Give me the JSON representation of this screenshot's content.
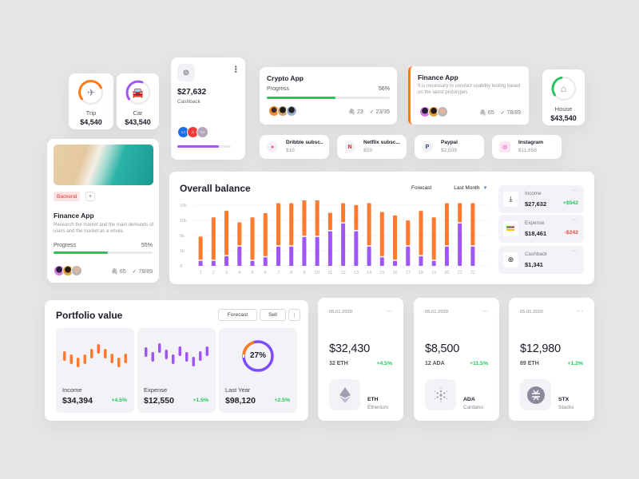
{
  "colors": {
    "background": "#e5e5e5",
    "orange": "#ff7a2f",
    "purple": "#a055f5",
    "green": "#22c55e",
    "red": "#ef4444",
    "blue": "#3b82f6"
  },
  "ring_cards": [
    {
      "label": "Trip",
      "value": "$4,540",
      "icon": "plane-icon",
      "color": "#ff7a1a",
      "percent": 65
    },
    {
      "label": "Car",
      "value": "$43,540",
      "icon": "car-icon",
      "color": "#a055f5",
      "percent": 60
    },
    {
      "label": "House",
      "value": "$43,540",
      "icon": "house-icon",
      "color": "#22c55e",
      "percent": 30
    }
  ],
  "cashback_card": {
    "icon": "coins-icon",
    "amount": "$27,632",
    "label": "Cashback",
    "progress": 78
  },
  "crypto_app_card": {
    "title": "Crypto App",
    "progress_label": "Progress",
    "progress_value": "56%",
    "progress": 56,
    "attachments": "23",
    "tasks": "23/35"
  },
  "finance_app_card_top": {
    "title": "Finance App",
    "description": "It is necessary to conduct usability testing based on the latest prototypes",
    "attachments": "65",
    "tasks": "78/89"
  },
  "subscriptions": [
    {
      "name": "Dribble subsc..",
      "amount": "$15",
      "icon": "dribbble-icon"
    },
    {
      "name": "Netflix subsc...",
      "amount": "$59",
      "icon": "netflix-icon"
    },
    {
      "name": "Paypal",
      "amount": "$2,509",
      "icon": "paypal-icon"
    },
    {
      "name": "Instagram",
      "amount": "$11,658",
      "icon": "instagram-icon"
    }
  ],
  "finance_app_card_left": {
    "tag": "Backend",
    "add_label": "+",
    "title": "Finance App",
    "description": "Research the market and the main demands of users and the market as a whole.",
    "progress_label": "Progress",
    "progress_value": "55%",
    "progress": 55,
    "attachments": "65",
    "tasks": "78/89"
  },
  "overall_balance": {
    "title": "Overall balance",
    "tab_forecast": "Forecast",
    "tab_period": "Last Month",
    "stats": [
      {
        "label": "Income",
        "amount": "$27,632",
        "delta": "+$542",
        "icon": "download-icon",
        "dots": "···"
      },
      {
        "label": "Expense",
        "amount": "$18,461",
        "delta": "-$242",
        "icon": "wallet-icon",
        "dots": "···"
      },
      {
        "label": "Cashback",
        "amount": "$1,341",
        "delta": "",
        "icon": "cashback-icon",
        "dots": "···"
      }
    ]
  },
  "chart_data": {
    "type": "bar",
    "title": "Overall balance",
    "stacked": true,
    "categories": [
      "1",
      "2",
      "3",
      "4",
      "5",
      "6",
      "7",
      "8",
      "9",
      "10",
      "11",
      "12",
      "13",
      "14",
      "15",
      "16",
      "17",
      "18",
      "19",
      "20",
      "21",
      "22"
    ],
    "y_tick_labels": [
      "0",
      "1k",
      "5k",
      "10k",
      "15k"
    ],
    "series": [
      {
        "name": "Purple (lower)",
        "color": "#a055f5",
        "values": [
          1.3,
          1.3,
          2.5,
          5.0,
          1.3,
          2.2,
          5.0,
          5.0,
          7.5,
          7.5,
          9.0,
          11.0,
          9.0,
          5.0,
          2.2,
          1.3,
          5.0,
          2.5,
          1.3,
          5.0,
          11.0,
          5.0
        ]
      },
      {
        "name": "Orange (upper)",
        "color": "#ff7a2f",
        "values": [
          6.0,
          11.0,
          11.5,
          6.0,
          11.0,
          11.2,
          11.0,
          11.0,
          10.5,
          10.5,
          4.5,
          5.0,
          6.5,
          11.0,
          11.5,
          11.5,
          6.5,
          11.5,
          11.0,
          11.0,
          5.0,
          11.0
        ]
      }
    ],
    "grid": true,
    "legend": "none"
  },
  "portfolio": {
    "title": "Portfolio value",
    "btn_forecast": "Forecast",
    "btn_sell": "Sell",
    "btn_more": "⋮",
    "tiles": [
      {
        "label": "Income",
        "amount": "$34,394",
        "pct": "+4.5%"
      },
      {
        "label": "Expense",
        "amount": "$12,550",
        "pct": "+1.5%"
      },
      {
        "label": "Last Year",
        "amount": "$98,120",
        "pct": "+2.5%",
        "ring_label": "27%"
      }
    ]
  },
  "crypto_cards": [
    {
      "date": "05.01.2020",
      "dots": "···",
      "amount": "$32,430",
      "qty": "32 ETH",
      "change": "+4.5%",
      "symbol": "ETH",
      "name": "Etherium",
      "icon": "ethereum-icon"
    },
    {
      "date": "05.01.2020",
      "dots": "···",
      "amount": "$8,500",
      "qty": "12 ADA",
      "change": "+11.5%",
      "symbol": "ADA",
      "name": "Cardano",
      "icon": "cardano-icon"
    },
    {
      "date": "05.01.2020",
      "dots": "···",
      "amount": "$12,980",
      "qty": "89 ETH",
      "change": "+1.2%",
      "symbol": "STX",
      "name": "Stacks",
      "icon": "stacks-icon"
    }
  ]
}
